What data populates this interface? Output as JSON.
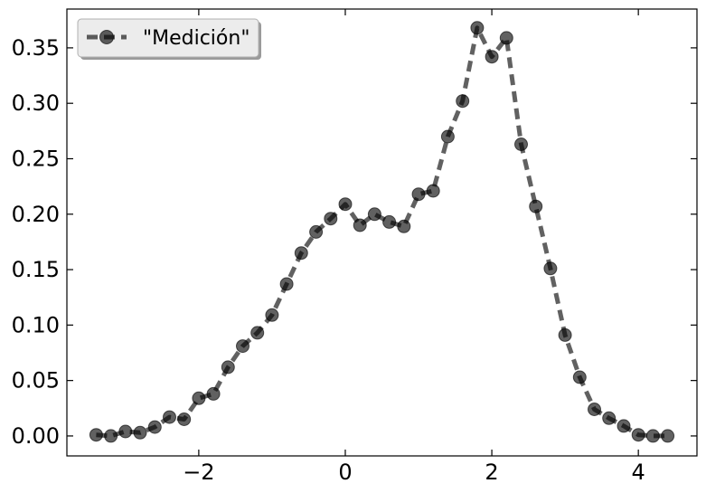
{
  "chart_data": {
    "type": "line",
    "title": "",
    "xlabel": "",
    "ylabel": "",
    "xlim": [
      -3.8,
      4.8
    ],
    "ylim": [
      -0.018,
      0.385
    ],
    "xticks": [
      -2,
      0,
      2,
      4
    ],
    "xtick_labels": [
      "−2",
      "0",
      "2",
      "4"
    ],
    "yticks": [
      0.0,
      0.05,
      0.1,
      0.15,
      0.2,
      0.25,
      0.3,
      0.35
    ],
    "ytick_labels": [
      "0.00",
      "0.05",
      "0.10",
      "0.15",
      "0.20",
      "0.25",
      "0.30",
      "0.35"
    ],
    "grid": false,
    "legend_position": "top-left",
    "series": [
      {
        "name": "\"Medición\"",
        "color": "#000000",
        "line_style": "dashed",
        "marker": "circle",
        "x": [
          -3.4,
          -3.2,
          -3.0,
          -2.8,
          -2.6,
          -2.4,
          -2.2,
          -2.0,
          -1.8,
          -1.6,
          -1.4,
          -1.2,
          -1.0,
          -0.8,
          -0.6,
          -0.4,
          -0.2,
          0.0,
          0.2,
          0.4,
          0.6,
          0.8,
          1.0,
          1.2,
          1.4,
          1.6,
          1.8,
          2.0,
          2.2,
          2.4,
          2.6,
          2.8,
          3.0,
          3.2,
          3.4,
          3.6,
          3.8,
          4.0,
          4.2,
          4.4
        ],
        "y": [
          0.001,
          0.0,
          0.004,
          0.003,
          0.008,
          0.017,
          0.015,
          0.034,
          0.038,
          0.062,
          0.081,
          0.093,
          0.109,
          0.137,
          0.165,
          0.184,
          0.196,
          0.209,
          0.19,
          0.2,
          0.193,
          0.189,
          0.218,
          0.221,
          0.27,
          0.302,
          0.368,
          0.342,
          0.359,
          0.263,
          0.207,
          0.151,
          0.091,
          0.053,
          0.024,
          0.016,
          0.009,
          0.001,
          0.0,
          0.0
        ]
      }
    ]
  }
}
